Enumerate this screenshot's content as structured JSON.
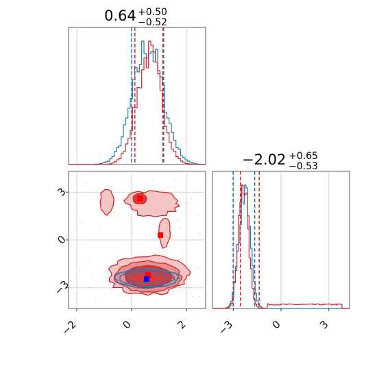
{
  "chart_data": [
    {
      "type": "histogram",
      "panel": "marginal-parameter-1",
      "title": {
        "main": "0.64",
        "upper": "+0.50",
        "lower": "−0.52"
      },
      "grid": true,
      "series": [
        {
          "color": "#1f77b4",
          "quantiles": [
            0.0,
            1.17
          ],
          "peak": 0.6,
          "sigma": 0.55
        },
        {
          "color": "#d62728",
          "quantiles": [
            0.12,
            1.14
          ],
          "peak": 0.64,
          "sigma": 0.45
        }
      ],
      "xlim": [
        -2.3,
        2.7
      ]
    },
    {
      "type": "histogram",
      "panel": "marginal-parameter-2",
      "title": {
        "main": "−2.02",
        "upper": "+0.65",
        "lower": "−0.53"
      },
      "grid": true,
      "series": [
        {
          "color": "#1f77b4",
          "quantiles": [
            -3.0,
            -1.65
          ],
          "peak": -2.3,
          "sigma": 0.35
        },
        {
          "color": "#d62728",
          "quantiles": [
            -2.55,
            -1.37
          ],
          "peak": -2.35,
          "sigma": 0.3,
          "tail": [
            -0.9,
            3.8
          ]
        }
      ],
      "xlim": [
        -4.3,
        4.3
      ],
      "xticks": [
        "−3",
        "0",
        "3"
      ]
    },
    {
      "type": "contour",
      "panel": "joint-parameter-1-vs-parameter-2",
      "grid": true,
      "xlim": [
        -2.3,
        2.7
      ],
      "ylim": [
        -4.3,
        4.3
      ],
      "xticks": [
        "−2",
        "0",
        "2"
      ],
      "yticks": [
        "3",
        "0",
        "−3"
      ],
      "series": [
        {
          "color": "#1f77b4",
          "center": [
            0.55,
            -2.4
          ],
          "square_marker": [
            0.55,
            -2.45
          ]
        },
        {
          "color": "#d62728",
          "center": [
            0.6,
            -2.3
          ],
          "square_marker": [
            0.6,
            -2.2
          ],
          "extra_markers": [
            [
              0.3,
              2.6
            ],
            [
              1.05,
              0.3
            ]
          ]
        }
      ]
    }
  ]
}
